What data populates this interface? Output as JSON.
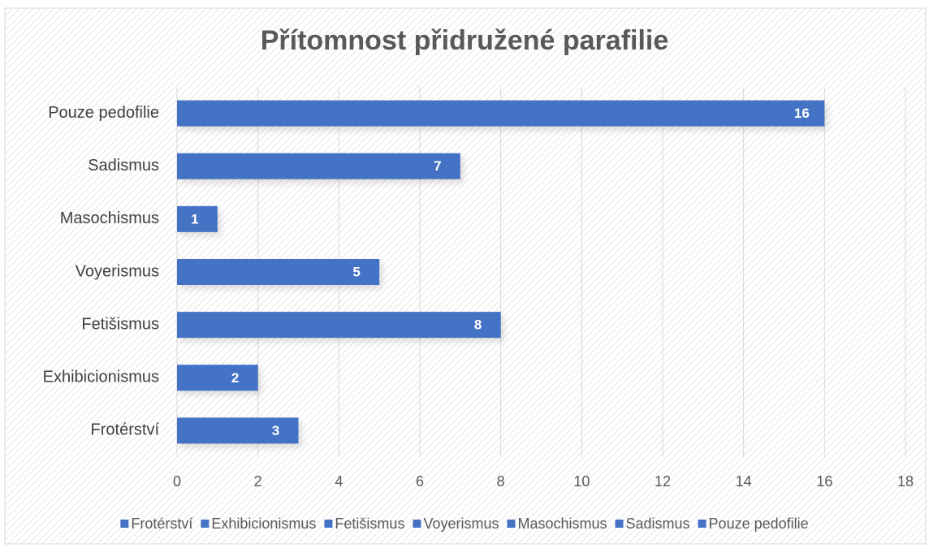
{
  "chart_data": {
    "type": "barh",
    "title": "Přítomnost přidružené parafilie",
    "categories": [
      "Frotérství",
      "Exhibicionismus",
      "Fetišismus",
      "Voyerismus",
      "Masochismus",
      "Sadismus",
      "Pouze pedofilie"
    ],
    "values": [
      3,
      2,
      8,
      5,
      1,
      7,
      16
    ],
    "color": "#4472c4",
    "xlim": [
      0,
      18
    ],
    "xticks": [
      0,
      2,
      4,
      6,
      8,
      10,
      12,
      14,
      16,
      18
    ],
    "grid": true,
    "legend": "bottom"
  }
}
